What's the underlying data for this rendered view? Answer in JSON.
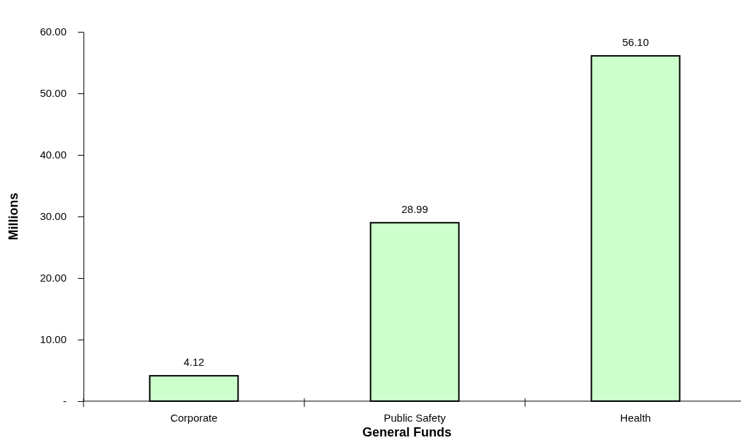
{
  "chart_data": {
    "type": "bar",
    "xlabel": "General Funds",
    "ylabel": "Millions",
    "categories": [
      "Corporate",
      "Public Safety",
      "Health"
    ],
    "values": [
      4.12,
      28.99,
      56.1
    ],
    "color": "#ccffcc",
    "ylim": [
      0,
      60
    ],
    "yticks": [
      {
        "value": 0,
        "label": "-"
      },
      {
        "value": 10,
        "label": "10.00"
      },
      {
        "value": 20,
        "label": "20.00"
      },
      {
        "value": 30,
        "label": "30.00"
      },
      {
        "value": 40,
        "label": "40.00"
      },
      {
        "value": 50,
        "label": "50.00"
      },
      {
        "value": 60,
        "label": "60.00"
      }
    ],
    "value_labels": [
      "4.12",
      "28.99",
      "56.10"
    ],
    "grid": false
  }
}
